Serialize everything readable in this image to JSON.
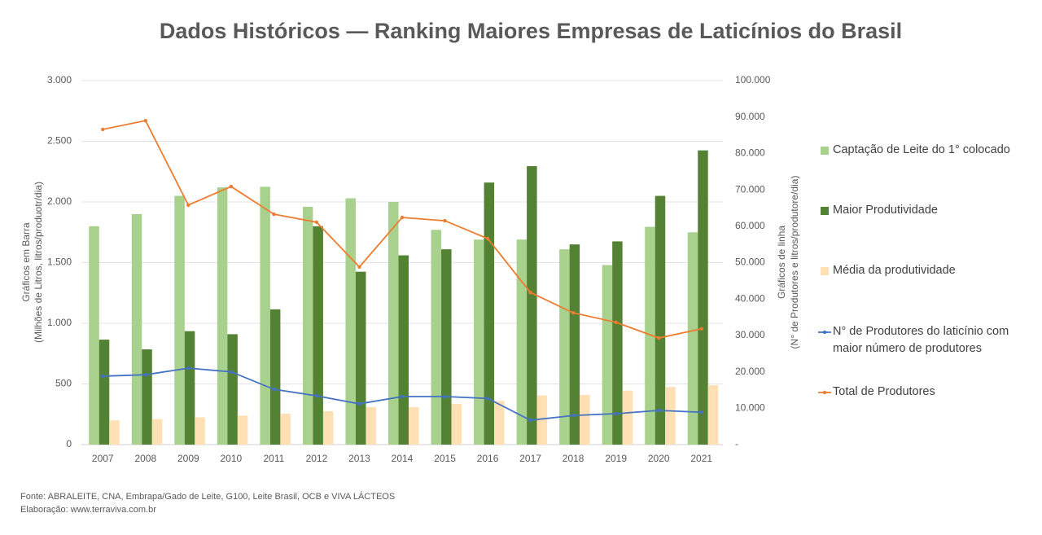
{
  "chart_data": {
    "type": "bar",
    "title": "Dados Históricos — Ranking Maiores Empresas de Laticínios do Brasil",
    "ylabel": [
      "Gráficos em Barra",
      "(Milhões de Litros, litros/produotr/dia)"
    ],
    "y2label": [
      "Gráficos de linha",
      "(N° de Produtores e litros/produtore/dia)"
    ],
    "categories": [
      "2007",
      "2008",
      "2009",
      "2010",
      "2011",
      "2012",
      "2013",
      "2014",
      "2015",
      "2016",
      "2017",
      "2018",
      "2019",
      "2020",
      "2021"
    ],
    "series": [
      {
        "name": "Captação de Leite do 1° colocado",
        "type": "bar",
        "color": "#a9d18e",
        "values": [
          1800,
          1900,
          2050,
          2120,
          2125,
          1960,
          2030,
          2000,
          1770,
          1690,
          1690,
          1610,
          1480,
          1795,
          1750
        ]
      },
      {
        "name": "Maior Produtividade",
        "type": "bar",
        "color": "#548235",
        "values": [
          865,
          785,
          935,
          910,
          1115,
          1800,
          1425,
          1560,
          1610,
          2160,
          2295,
          1650,
          1675,
          2050,
          2425
        ]
      },
      {
        "name": "Média da produtividade",
        "type": "bar",
        "color": "#ffe0b5",
        "values": [
          200,
          210,
          225,
          240,
          255,
          275,
          310,
          310,
          335,
          360,
          405,
          410,
          445,
          475,
          490
        ]
      },
      {
        "name": "N° de Produtores do laticínio com maior número de produtores",
        "type": "line",
        "axis": "y2",
        "color": "#4472c4",
        "values": [
          18800,
          19200,
          21000,
          20000,
          15200,
          13400,
          11200,
          13200,
          13200,
          12700,
          6700,
          8000,
          8500,
          9400,
          8900
        ]
      },
      {
        "name": "Total de Produtores",
        "type": "line",
        "axis": "y2",
        "color": "#ed7d31",
        "values": [
          86600,
          89000,
          65800,
          70900,
          63300,
          61100,
          48800,
          62400,
          61500,
          56600,
          41800,
          36200,
          33600,
          29300,
          31800
        ]
      }
    ],
    "ylim": [
      0,
      3000
    ],
    "yticks": [
      0,
      500,
      {
        "value": 1000,
        "label": "1.000"
      },
      {
        "value": 1500,
        "label": "1.500"
      },
      {
        "value": 2000,
        "label": "2.000"
      },
      {
        "value": 2500,
        "label": "2.500"
      },
      {
        "value": 3000,
        "label": "3.000"
      }
    ],
    "y2lim": [
      0,
      100000
    ],
    "y2ticks": [
      {
        "value": 0,
        "label": "-"
      },
      {
        "value": 10000,
        "label": "10.000"
      },
      {
        "value": 20000,
        "label": "20.000"
      },
      {
        "value": 30000,
        "label": "30.000"
      },
      {
        "value": 40000,
        "label": "40.000"
      },
      {
        "value": 50000,
        "label": "50.000"
      },
      {
        "value": 60000,
        "label": "60.000"
      },
      {
        "value": 70000,
        "label": "70.000"
      },
      {
        "value": 80000,
        "label": "80.000"
      },
      {
        "value": 90000,
        "label": "90.000"
      },
      {
        "value": 100000,
        "label": "100.000"
      }
    ],
    "grid": true,
    "legend": "right",
    "source": [
      "Fonte: ABRALEITE, CNA, Embrapa/Gado de Leite, G100, Leite Brasil, OCB e VIVA LÁCTEOS",
      "Elaboração: www.terraviva.com.br"
    ]
  }
}
